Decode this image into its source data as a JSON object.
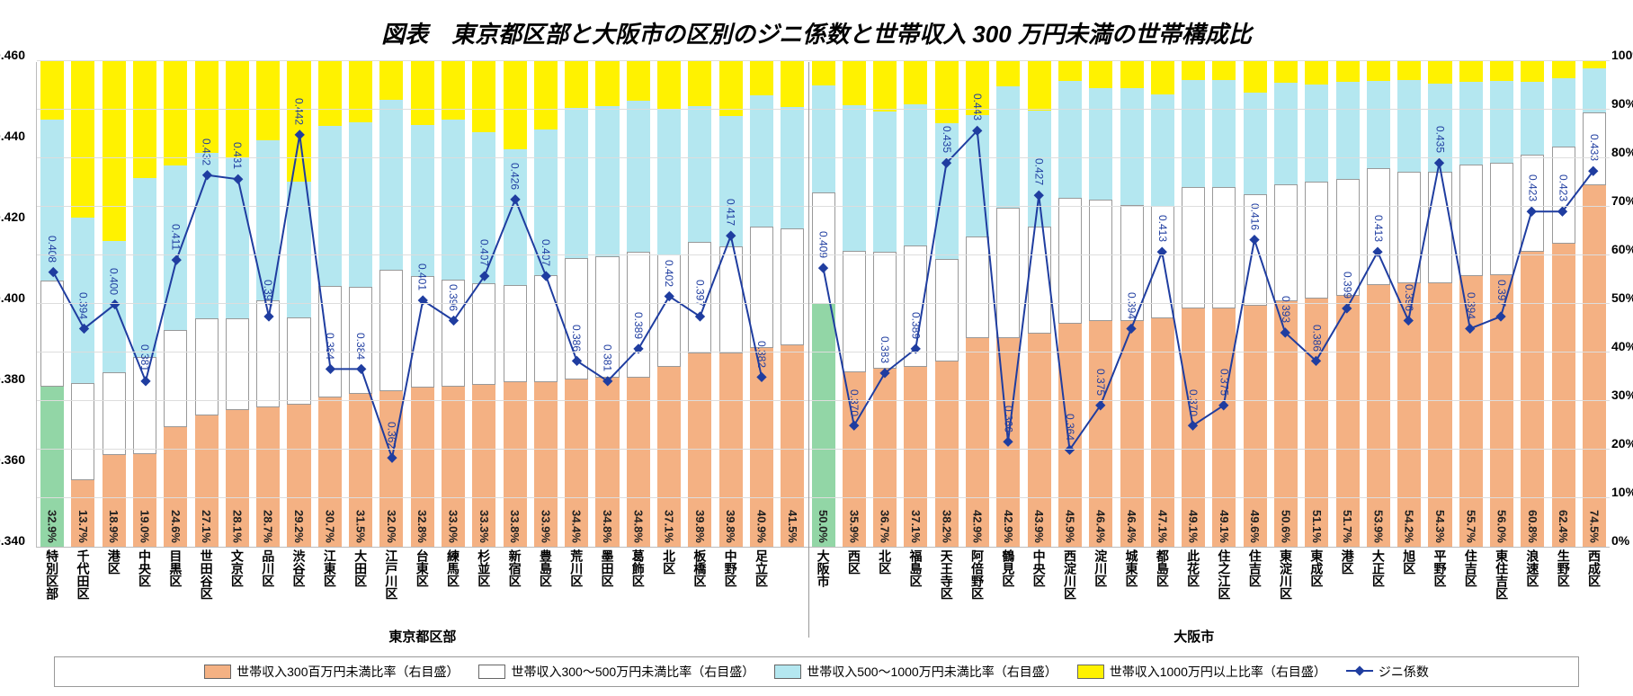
{
  "title": "図表　東京都区部と大阪市の区別のジニ係数と世帯収入 300 万円未満の世帯構成比",
  "chart": {
    "type": "stacked-bar + line",
    "left_axis": {
      "min": 0.34,
      "max": 0.46,
      "ticks": [
        "0.340",
        "0.360",
        "0.380",
        "0.400",
        "0.420",
        "0.440",
        "0.460"
      ],
      "label_fontsize": 14
    },
    "right_axis": {
      "min": 0,
      "max": 100,
      "ticks": [
        "0%",
        "10%",
        "20%",
        "30%",
        "40%",
        "50%",
        "60%",
        "70%",
        "80%",
        "90%",
        "100%"
      ],
      "label_fontsize": 14
    },
    "grid_color": "#dddddd",
    "background_color": "#ffffff",
    "bar_colors": {
      "under300": "#f4b183",
      "under300_agg": "#92d6a6",
      "range300_500": "#ffffff",
      "range500_1000": "#b4e7f0",
      "over1000": "#fff200"
    },
    "line_color": "#1f3da0",
    "line_marker": "diamond",
    "groups": [
      {
        "name": "東京都区部",
        "start": 0,
        "end": 25
      },
      {
        "name": "大阪市",
        "start": 25,
        "end": 50
      }
    ],
    "series": [
      {
        "name": "特別区部",
        "agg": true,
        "u300": 32.9,
        "r300_500": 22.0,
        "r500_1000": 33.0,
        "over1000": 12.1,
        "gini": 0.408
      },
      {
        "name": "千代田区",
        "u300": 13.7,
        "r300_500": 20.0,
        "r500_1000": 34.0,
        "over1000": 32.3,
        "gini": 0.394
      },
      {
        "name": "港区",
        "u300": 18.9,
        "r300_500": 17.0,
        "r500_1000": 27.0,
        "over1000": 37.1,
        "gini": 0.4
      },
      {
        "name": "中央区",
        "u300": 19.0,
        "r300_500": 20.0,
        "r500_1000": 37.0,
        "over1000": 24.0,
        "gini": 0.381
      },
      {
        "name": "目黒区",
        "u300": 24.6,
        "r300_500": 20.0,
        "r500_1000": 34.0,
        "over1000": 21.4,
        "gini": 0.411
      },
      {
        "name": "世田谷区",
        "u300": 27.1,
        "r300_500": 20.0,
        "r500_1000": 34.0,
        "over1000": 18.9,
        "gini": 0.432
      },
      {
        "name": "文京区",
        "u300": 28.1,
        "r300_500": 19.0,
        "r500_1000": 33.0,
        "over1000": 19.9,
        "gini": 0.431
      },
      {
        "name": "品川区",
        "u300": 28.7,
        "r300_500": 22.0,
        "r500_1000": 33.0,
        "over1000": 16.3,
        "gini": 0.397
      },
      {
        "name": "渋谷区",
        "u300": 29.2,
        "r300_500": 18.0,
        "r500_1000": 28.0,
        "over1000": 24.8,
        "gini": 0.442
      },
      {
        "name": "江東区",
        "u300": 30.7,
        "r300_500": 23.0,
        "r500_1000": 33.0,
        "over1000": 13.3,
        "gini": 0.384
      },
      {
        "name": "大田区",
        "u300": 31.5,
        "r300_500": 22.0,
        "r500_1000": 34.0,
        "over1000": 12.5,
        "gini": 0.384
      },
      {
        "name": "江戸川区",
        "u300": 32.0,
        "r300_500": 25.0,
        "r500_1000": 35.0,
        "over1000": 8.0,
        "gini": 0.362
      },
      {
        "name": "台東区",
        "u300": 32.8,
        "r300_500": 23.0,
        "r500_1000": 31.0,
        "over1000": 13.2,
        "gini": 0.401
      },
      {
        "name": "練馬区",
        "u300": 33.0,
        "r300_500": 22.0,
        "r500_1000": 33.0,
        "over1000": 12.0,
        "gini": 0.396
      },
      {
        "name": "杉並区",
        "u300": 33.3,
        "r300_500": 21.0,
        "r500_1000": 31.0,
        "over1000": 14.7,
        "gini": 0.407
      },
      {
        "name": "新宿区",
        "u300": 33.8,
        "r300_500": 20.0,
        "r500_1000": 28.0,
        "over1000": 18.2,
        "gini": 0.426
      },
      {
        "name": "豊島区",
        "u300": 33.9,
        "r300_500": 22.0,
        "r500_1000": 30.0,
        "over1000": 14.1,
        "gini": 0.407
      },
      {
        "name": "荒川区",
        "u300": 34.4,
        "r300_500": 25.0,
        "r500_1000": 31.0,
        "over1000": 9.6,
        "gini": 0.386
      },
      {
        "name": "墨田区",
        "u300": 34.8,
        "r300_500": 25.0,
        "r500_1000": 31.0,
        "over1000": 9.2,
        "gini": 0.381
      },
      {
        "name": "葛飾区",
        "u300": 34.8,
        "r300_500": 26.0,
        "r500_1000": 31.0,
        "over1000": 8.2,
        "gini": 0.389
      },
      {
        "name": "北区",
        "u300": 37.1,
        "r300_500": 23.0,
        "r500_1000": 30.0,
        "over1000": 9.9,
        "gini": 0.402
      },
      {
        "name": "板橋区",
        "u300": 39.8,
        "r300_500": 23.0,
        "r500_1000": 28.0,
        "over1000": 9.2,
        "gini": 0.397
      },
      {
        "name": "中野区",
        "u300": 39.8,
        "r300_500": 22.0,
        "r500_1000": 27.0,
        "over1000": 11.2,
        "gini": 0.417
      },
      {
        "name": "足立区",
        "u300": 40.9,
        "r300_500": 25.0,
        "r500_1000": 27.0,
        "over1000": 7.1,
        "gini": 0.382
      },
      {
        "name": "",
        "u300": 41.5,
        "r300_500": 24.0,
        "r500_1000": 25.0,
        "over1000": 9.5,
        "gini": null
      },
      {
        "name": "大阪市",
        "agg": true,
        "u300": 50.0,
        "r300_500": 23.0,
        "r500_1000": 22.0,
        "over1000": 5.0,
        "gini": 0.409
      },
      {
        "name": "西区",
        "u300": 35.9,
        "r300_500": 25.0,
        "r500_1000": 30.0,
        "over1000": 9.1,
        "gini": 0.37
      },
      {
        "name": "北区",
        "u300": 36.7,
        "r300_500": 24.0,
        "r500_1000": 29.0,
        "over1000": 10.3,
        "gini": 0.383
      },
      {
        "name": "福島区",
        "u300": 37.1,
        "r300_500": 25.0,
        "r500_1000": 29.0,
        "over1000": 8.9,
        "gini": 0.389
      },
      {
        "name": "天王寺区",
        "u300": 38.2,
        "r300_500": 21.0,
        "r500_1000": 28.0,
        "over1000": 12.8,
        "gini": 0.435
      },
      {
        "name": "阿倍野区",
        "u300": 42.9,
        "r300_500": 21.0,
        "r500_1000": 25.0,
        "over1000": 11.1,
        "gini": 0.443
      },
      {
        "name": "鶴見区",
        "u300": 42.9,
        "r300_500": 27.0,
        "r500_1000": 25.0,
        "over1000": 5.1,
        "gini": 0.366
      },
      {
        "name": "中央区",
        "u300": 43.9,
        "r300_500": 22.0,
        "r500_1000": 24.0,
        "over1000": 10.1,
        "gini": 0.427
      },
      {
        "name": "西淀川区",
        "u300": 45.9,
        "r300_500": 26.0,
        "r500_1000": 24.0,
        "over1000": 4.1,
        "gini": 0.364
      },
      {
        "name": "淀川区",
        "u300": 46.4,
        "r300_500": 25.0,
        "r500_1000": 23.0,
        "over1000": 5.6,
        "gini": 0.375
      },
      {
        "name": "城東区",
        "u300": 46.4,
        "r300_500": 24.0,
        "r500_1000": 24.0,
        "over1000": 5.6,
        "gini": 0.394
      },
      {
        "name": "都島区",
        "u300": 47.1,
        "r300_500": 23.0,
        "r500_1000": 23.0,
        "over1000": 6.9,
        "gini": 0.413
      },
      {
        "name": "此花区",
        "u300": 49.1,
        "r300_500": 25.0,
        "r500_1000": 22.0,
        "over1000": 3.9,
        "gini": 0.37
      },
      {
        "name": "住之江区",
        "u300": 49.1,
        "r300_500": 25.0,
        "r500_1000": 22.0,
        "over1000": 3.9,
        "gini": 0.375
      },
      {
        "name": "住吉区",
        "u300": 49.6,
        "r300_500": 23.0,
        "r500_1000": 21.0,
        "over1000": 6.4,
        "gini": 0.416
      },
      {
        "name": "東淀川区",
        "u300": 50.6,
        "r300_500": 24.0,
        "r500_1000": 21.0,
        "over1000": 4.4,
        "gini": 0.393
      },
      {
        "name": "東成区",
        "u300": 51.1,
        "r300_500": 24.0,
        "r500_1000": 20.0,
        "over1000": 4.9,
        "gini": 0.386
      },
      {
        "name": "港区",
        "u300": 51.7,
        "r300_500": 24.0,
        "r500_1000": 20.0,
        "over1000": 4.3,
        "gini": 0.399
      },
      {
        "name": "大正区",
        "u300": 53.9,
        "r300_500": 24.0,
        "r500_1000": 18.0,
        "over1000": 4.1,
        "gini": 0.413
      },
      {
        "name": "旭区",
        "u300": 54.2,
        "r300_500": 23.0,
        "r500_1000": 19.0,
        "over1000": 3.8,
        "gini": 0.396
      },
      {
        "name": "平野区",
        "u300": 54.3,
        "r300_500": 23.0,
        "r500_1000": 18.0,
        "over1000": 4.7,
        "gini": 0.435
      },
      {
        "name": "住吉区",
        "u300": 55.7,
        "r300_500": 23.0,
        "r500_1000": 17.0,
        "over1000": 4.3,
        "gini": 0.394
      },
      {
        "name": "東住吉区",
        "u300": 56.0,
        "r300_500": 23.0,
        "r500_1000": 17.0,
        "over1000": 4.0,
        "gini": 0.397
      },
      {
        "name": "浪速区",
        "u300": 60.8,
        "r300_500": 20.0,
        "r500_1000": 15.0,
        "over1000": 4.2,
        "gini": 0.423
      },
      {
        "name": "生野区",
        "u300": 62.4,
        "r300_500": 20.0,
        "r500_1000": 14.0,
        "over1000": 3.6,
        "gini": 0.423
      },
      {
        "name": "西成区",
        "u300": 74.5,
        "r300_500": 15.0,
        "r500_1000": 9.0,
        "over1000": 1.5,
        "gini": 0.433
      }
    ]
  },
  "legend": {
    "items": [
      {
        "key": "u300",
        "label": "世帯収入300百万円未満比率（右目盛）",
        "color": "#f4b183"
      },
      {
        "key": "r300_500",
        "label": "世帯収入300～500万円未満比率（右目盛）",
        "color": "#ffffff"
      },
      {
        "key": "r500_1000",
        "label": "世帯収入500～1000万円未満比率（右目盛）",
        "color": "#b4e7f0"
      },
      {
        "key": "over1000",
        "label": "世帯収入1000万円以上比率（右目盛）",
        "color": "#fff200"
      },
      {
        "key": "gini",
        "label": "ジニ係数",
        "type": "line",
        "color": "#1f3da0"
      }
    ]
  }
}
